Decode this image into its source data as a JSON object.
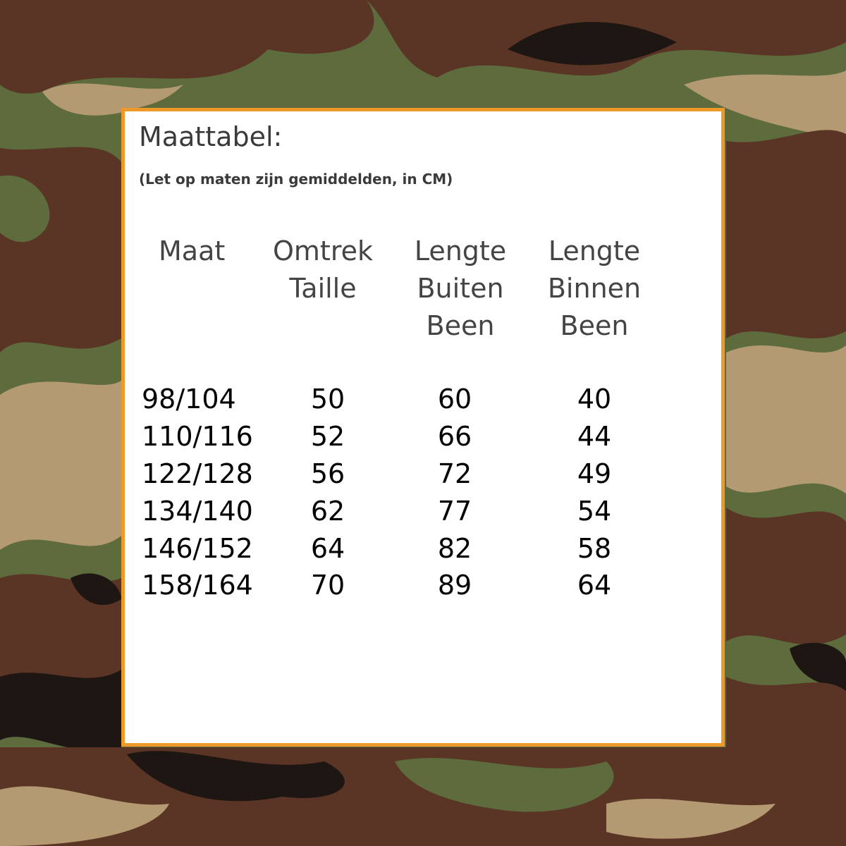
{
  "background": {
    "pattern": "woodland-camouflage",
    "colors": {
      "olive": "#5d6b3d",
      "brown": "#5a3526",
      "tan": "#b39a72",
      "black": "#1d1612"
    }
  },
  "frame_color": "#ee9a2a",
  "title": "Maattabel:",
  "note": "(Let op maten zijn gemiddelden, in CM)",
  "headers": [
    {
      "lines": [
        "Maat"
      ]
    },
    {
      "lines": [
        "Omtrek",
        "Taille"
      ]
    },
    {
      "lines": [
        "Lengte",
        "Buiten",
        "Been"
      ]
    },
    {
      "lines": [
        "Lengte",
        "Binnen",
        "Been"
      ]
    }
  ],
  "rows": [
    [
      "98/104",
      "50",
      "60",
      "40"
    ],
    [
      "110/116",
      "52",
      "66",
      "44"
    ],
    [
      "122/128",
      "56",
      "72",
      "49"
    ],
    [
      "134/140",
      "62",
      "77",
      "54"
    ],
    [
      "146/152",
      "64",
      "82",
      "58"
    ],
    [
      "158/164",
      "70",
      "89",
      "64"
    ]
  ]
}
